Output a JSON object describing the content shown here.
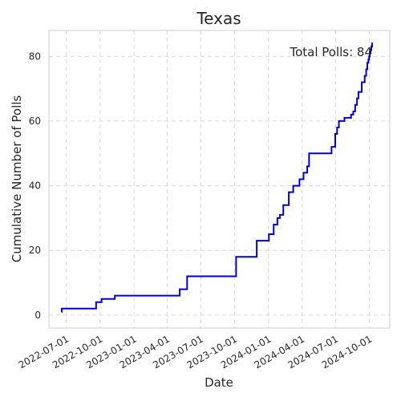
{
  "chart_data": {
    "type": "line",
    "step": true,
    "title": "Texas",
    "xlabel": "Date",
    "ylabel": "Cumulative Number of Polls",
    "x_axis_type": "date",
    "xlim": [
      "2022-05-15",
      "2024-11-25"
    ],
    "ylim": [
      -4,
      88
    ],
    "x_ticks": [
      "2022-07-01",
      "2022-10-01",
      "2023-01-01",
      "2023-04-01",
      "2023-07-01",
      "2023-10-01",
      "2024-01-01",
      "2024-04-01",
      "2024-07-01",
      "2024-10-01"
    ],
    "y_ticks": [
      0,
      20,
      40,
      60,
      80
    ],
    "grid": true,
    "annotation": "Total Polls: 84",
    "series": [
      {
        "color": "#0000cc",
        "x": [
          "2022-06-18",
          "2022-06-19",
          "2022-09-20",
          "2022-10-05",
          "2022-11-10",
          "2023-05-05",
          "2023-05-25",
          "2023-10-05",
          "2023-11-30",
          "2024-01-02",
          "2024-01-15",
          "2024-01-25",
          "2024-02-01",
          "2024-02-10",
          "2024-02-25",
          "2024-03-08",
          "2024-03-25",
          "2024-04-05",
          "2024-04-15",
          "2024-04-20",
          "2024-06-20",
          "2024-06-30",
          "2024-07-05",
          "2024-07-10",
          "2024-07-25",
          "2024-08-12",
          "2024-08-18",
          "2024-08-23",
          "2024-08-28",
          "2024-09-01",
          "2024-09-10",
          "2024-09-18",
          "2024-09-22",
          "2024-09-25",
          "2024-09-28",
          "2024-09-30",
          "2024-10-02",
          "2024-10-04",
          "2024-10-06",
          "2024-10-08",
          "2024-10-10"
        ],
        "y": [
          1,
          2,
          4,
          5,
          6,
          8,
          12,
          18,
          23,
          25,
          28,
          30,
          31,
          34,
          38,
          40,
          42,
          44,
          46,
          50,
          52,
          56,
          58,
          60,
          61,
          62,
          63,
          65,
          67,
          69,
          72,
          74,
          76,
          78,
          79,
          80,
          81,
          82,
          83,
          84,
          84
        ]
      }
    ]
  }
}
